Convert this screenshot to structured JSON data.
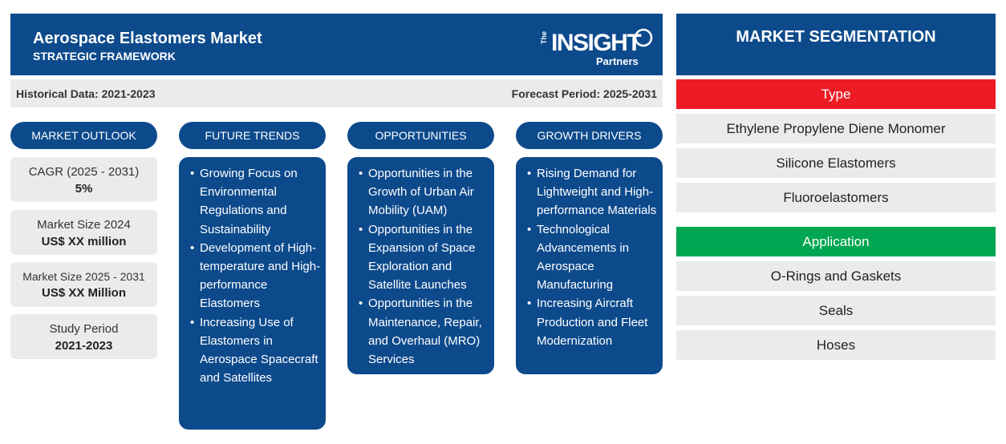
{
  "header": {
    "title": "Aerospace Elastomers Market",
    "subtitle": "STRATEGIC FRAMEWORK",
    "logo": {
      "the": "The",
      "insight": "INSIGHT",
      "partners": "Partners"
    }
  },
  "periods": {
    "historical": "Historical Data: 2021-2023",
    "forecast": "Forecast Period: 2025-2031"
  },
  "columns": {
    "outlook": "MARKET OUTLOOK",
    "trends": "FUTURE TRENDS",
    "opportunities": "OPPORTUNITIES",
    "drivers": "GROWTH DRIVERS"
  },
  "outlook": [
    {
      "label": "CAGR (2025 - 2031)",
      "value": "5%"
    },
    {
      "label": "Market Size 2024",
      "value": "US$ XX million"
    },
    {
      "label": "Market Size 2025 - 2031",
      "value": "US$ XX Million"
    },
    {
      "label": "Study Period",
      "value": "2021-2023"
    }
  ],
  "trends": [
    "Growing Focus on Environmental Regulations and Sustainability",
    "Development of High-temperature and High-performance Elastomers",
    "Increasing Use of Elastomers in Aerospace Spacecraft and Satellites"
  ],
  "opportunities": [
    "Opportunities in the Growth of Urban Air Mobility (UAM)",
    "Opportunities in the Expansion of Space Exploration and Satellite Launches",
    "Opportunities in the Maintenance, Repair, and Overhaul (MRO) Services"
  ],
  "drivers": [
    "Rising Demand for Lightweight and High-performance Materials",
    "Technological Advancements in Aerospace Manufacturing",
    "Increasing Aircraft Production and Fleet Modernization"
  ],
  "segmentation": {
    "title": "MARKET SEGMENTATION",
    "type": {
      "heading": "Type",
      "color": "#ed1c24",
      "items": [
        "Ethylene Propylene Diene Monomer",
        "Silicone Elastomers",
        "Fluoroelastomers"
      ]
    },
    "application": {
      "heading": "Application",
      "color": "#00a651",
      "items": [
        "O-Rings and Gaskets",
        "Seals",
        "Hoses"
      ]
    }
  },
  "colors": {
    "primary": "#0d4a8c",
    "panel": "#ebebeb"
  }
}
